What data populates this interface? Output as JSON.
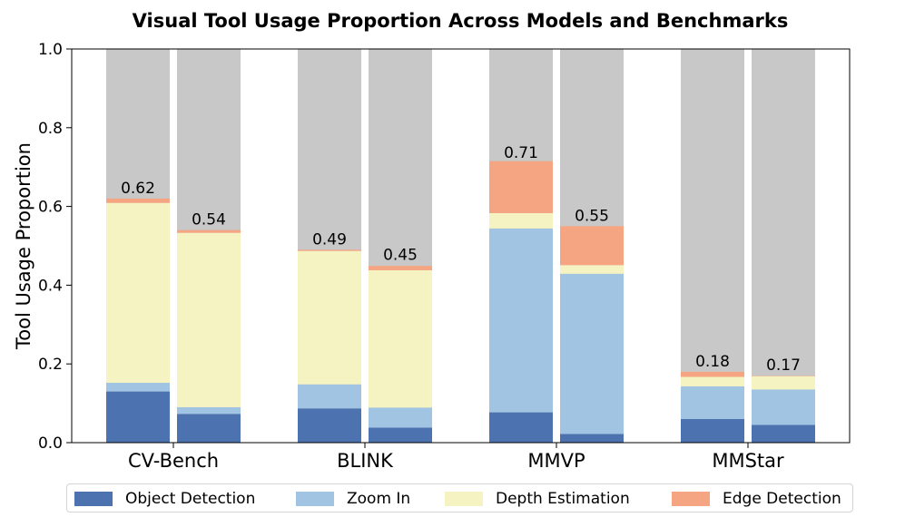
{
  "chart_data": {
    "type": "bar",
    "stacked": true,
    "title": "Visual Tool Usage Proportion Across Models and Benchmarks",
    "ylabel": "Tool Usage Proportion",
    "xlabel": "",
    "ylim": [
      0,
      1.0
    ],
    "yticks": [
      "0.0",
      "0.2",
      "0.4",
      "0.6",
      "0.8",
      "1.0"
    ],
    "categories": [
      "CV-Bench",
      "BLINK",
      "MMVP",
      "MMStar"
    ],
    "bars_per_category": 2,
    "background_bar_value": 1.0,
    "background_color": "#c8c8c8",
    "series": [
      {
        "name": "Object Detection",
        "color": "#4c72b0",
        "values": [
          [
            0.13,
            0.073
          ],
          [
            0.087,
            0.038
          ],
          [
            0.077,
            0.022
          ],
          [
            0.06,
            0.045
          ]
        ]
      },
      {
        "name": "Zoom In",
        "color": "#a1c4e2",
        "values": [
          [
            0.022,
            0.017
          ],
          [
            0.061,
            0.051
          ],
          [
            0.467,
            0.407
          ],
          [
            0.083,
            0.09
          ]
        ]
      },
      {
        "name": "Depth Estimation",
        "color": "#f5f3c1",
        "values": [
          [
            0.457,
            0.443
          ],
          [
            0.339,
            0.349
          ],
          [
            0.039,
            0.022
          ],
          [
            0.024,
            0.034
          ]
        ]
      },
      {
        "name": "Edge Detection",
        "color": "#f5a582",
        "values": [
          [
            0.011,
            0.007
          ],
          [
            0.003,
            0.011
          ],
          [
            0.132,
            0.099
          ],
          [
            0.013,
            0.001
          ]
        ]
      }
    ],
    "totals": [
      [
        0.62,
        0.54
      ],
      [
        0.49,
        0.45
      ],
      [
        0.71,
        0.55
      ],
      [
        0.18,
        0.17
      ]
    ],
    "total_labels": [
      [
        "0.62",
        "0.54"
      ],
      [
        "0.49",
        "0.45"
      ],
      [
        "0.71",
        "0.55"
      ],
      [
        "0.18",
        "0.17"
      ]
    ],
    "legend_position": "bottom",
    "grid": false
  }
}
